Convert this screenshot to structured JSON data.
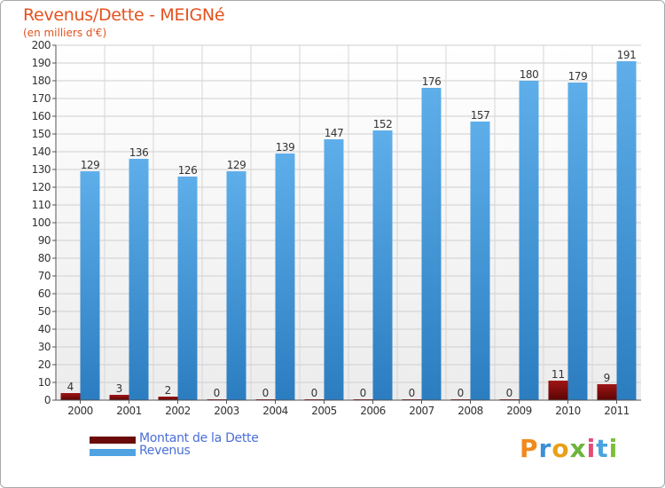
{
  "title": "Revenus/Dette - MEIGNé",
  "subtitle": "(en milliers d'€)",
  "chart_data": {
    "type": "bar",
    "categories": [
      "2000",
      "2001",
      "2002",
      "2003",
      "2004",
      "2005",
      "2006",
      "2007",
      "2008",
      "2009",
      "2010",
      "2011"
    ],
    "series": [
      {
        "name": "Montant de la Dette",
        "values": [
          4,
          3,
          2,
          0,
          0,
          0,
          0,
          0,
          0,
          0,
          11,
          9
        ],
        "color": "#7a0a0a"
      },
      {
        "name": "Revenus",
        "values": [
          129,
          136,
          126,
          129,
          139,
          147,
          152,
          176,
          157,
          180,
          179,
          191
        ],
        "color": "#4fa3e3"
      }
    ],
    "ylim": [
      0,
      200
    ],
    "ytick_step": 10,
    "grid": true
  },
  "legend": {
    "items": [
      {
        "label": "Montant de la Dette",
        "color": "#7a0a0a"
      },
      {
        "label": "Revenus",
        "color": "#4fa3e3"
      }
    ]
  },
  "logo": {
    "text": "Proxiti"
  }
}
